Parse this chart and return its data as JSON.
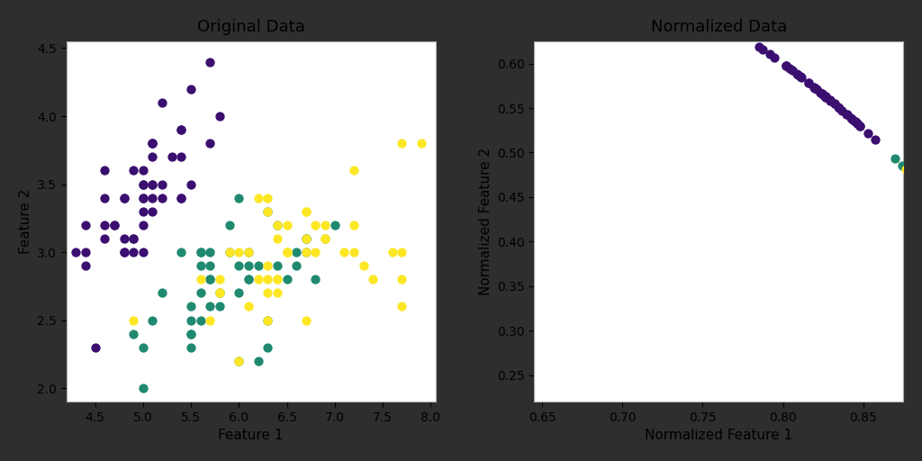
{
  "title_left": "Original Data",
  "title_right": "Normalized Data",
  "xlabel_left": "Feature 1",
  "ylabel_left": "Feature 2",
  "xlabel_right": "Normalized Feature 1",
  "ylabel_right": "Normalized Feature 2",
  "colors": [
    "#3b0f70",
    "#1f8a70",
    "#fde725"
  ],
  "figsize": [
    10.24,
    5.12
  ],
  "dpi": 100,
  "figure_bg": "#2e2e2e",
  "axes_bg": "#ffffff",
  "marker_size": 55,
  "xlim_left": [
    4.2,
    8.05
  ],
  "ylim_left": [
    1.9,
    4.55
  ],
  "xlim_right": [
    0.645,
    0.875
  ],
  "ylim_right": [
    0.22,
    0.625
  ],
  "spine_color": "#aaaaaa",
  "tick_labelsize": 10,
  "title_fontsize": 13,
  "label_fontsize": 11
}
